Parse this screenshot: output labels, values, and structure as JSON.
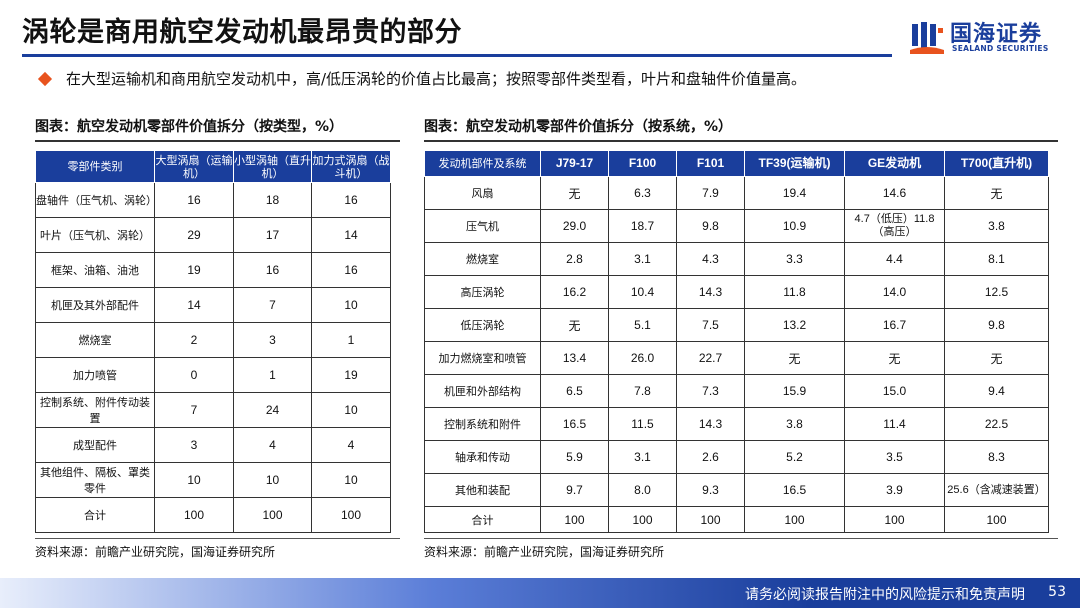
{
  "header": {
    "title": "涡轮是商用航空发动机最昂贵的部分",
    "logo_cn": "国海证券",
    "logo_en": "SEALAND SECURITIES",
    "accent_color": "#1a3e9c",
    "bullet_color": "#e8531e"
  },
  "bullet": "在大型运输机和商用航空发动机中，高/低压涡轮的价值占比最高；按照零部件类型看，叶片和盘轴件价值量高。",
  "table1": {
    "caption": "图表：航空发动机零部件价值拆分（按类型，%）",
    "headers": [
      "零部件类别",
      "大型涡扇（运输机）",
      "小型涡轴（直升机）",
      "加力式涡扇（战斗机）"
    ],
    "rows": [
      [
        "盘轴件（压气机、涡轮）",
        "16",
        "18",
        "16"
      ],
      [
        "叶片（压气机、涡轮）",
        "29",
        "17",
        "14"
      ],
      [
        "框架、油箱、油池",
        "19",
        "16",
        "16"
      ],
      [
        "机匣及其外部配件",
        "14",
        "7",
        "10"
      ],
      [
        "燃烧室",
        "2",
        "3",
        "1"
      ],
      [
        "加力喷管",
        "0",
        "1",
        "19"
      ],
      [
        "控制系统、附件传动装置",
        "7",
        "24",
        "10"
      ],
      [
        "成型配件",
        "3",
        "4",
        "4"
      ],
      [
        "其他组件、隔板、罩类零件",
        "10",
        "10",
        "10"
      ],
      [
        "合计",
        "100",
        "100",
        "100"
      ]
    ],
    "source": "资料来源：前瞻产业研究院，国海证券研究所"
  },
  "table2": {
    "caption": "图表：航空发动机零部件价值拆分（按系统，%）",
    "headers": [
      "发动机部件及系统",
      "J79-17",
      "F100",
      "F101",
      "TF39(运输机)",
      "GE发动机",
      "T700(直升机)"
    ],
    "rows": [
      [
        "风扇",
        "无",
        "6.3",
        "7.9",
        "19.4",
        "14.6",
        "无"
      ],
      [
        "压气机",
        "29.0",
        "18.7",
        "9.8",
        "10.9",
        "4.7（低压）11.8（高压）",
        "3.8"
      ],
      [
        "燃烧室",
        "2.8",
        "3.1",
        "4.3",
        "3.3",
        "4.4",
        "8.1"
      ],
      [
        "高压涡轮",
        "16.2",
        "10.4",
        "14.3",
        "11.8",
        "14.0",
        "12.5"
      ],
      [
        "低压涡轮",
        "无",
        "5.1",
        "7.5",
        "13.2",
        "16.7",
        "9.8"
      ],
      [
        "加力燃烧室和喷管",
        "13.4",
        "26.0",
        "22.7",
        "无",
        "无",
        "无"
      ],
      [
        "机匣和外部结构",
        "6.5",
        "7.8",
        "7.3",
        "15.9",
        "15.0",
        "9.4"
      ],
      [
        "控制系统和附件",
        "16.5",
        "11.5",
        "14.3",
        "3.8",
        "11.4",
        "22.5"
      ],
      [
        "轴承和传动",
        "5.9",
        "3.1",
        "2.6",
        "5.2",
        "3.5",
        "8.3"
      ],
      [
        "其他和装配",
        "9.7",
        "8.0",
        "9.3",
        "16.5",
        "3.9",
        "25.6（含减速装置）"
      ],
      [
        "合计",
        "100",
        "100",
        "100",
        "100",
        "100",
        "100"
      ]
    ],
    "source": "资料来源：前瞻产业研究院，国海证券研究所"
  },
  "footer": {
    "disclaimer": "请务必阅读报告附注中的风险提示和免责声明",
    "page": "53"
  }
}
